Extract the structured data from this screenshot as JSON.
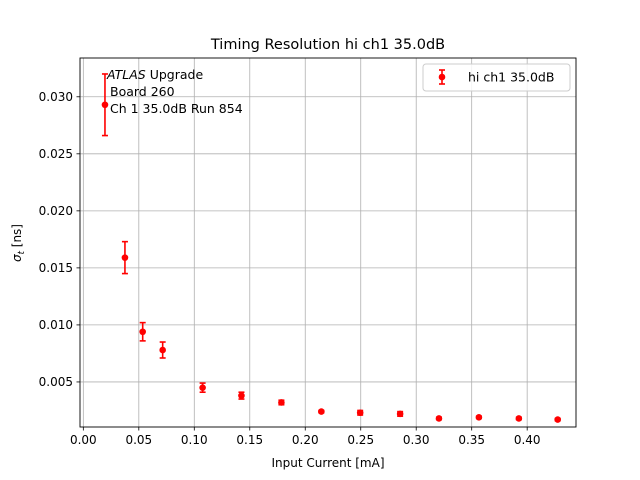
{
  "chart_data": {
    "type": "scatter",
    "title": "Timing Resolution hi ch1 35.0dB",
    "xlabel": "Input Current [mA]",
    "ylabel_sigma": "σ",
    "ylabel_sub": "t",
    "ylabel_unit": " [ns]",
    "xlim": [
      -0.003,
      0.444
    ],
    "ylim": [
      0.00105,
      0.0334
    ],
    "x_ticks": [
      "0.00",
      "0.05",
      "0.10",
      "0.15",
      "0.20",
      "0.25",
      "0.30",
      "0.35",
      "0.40"
    ],
    "x_tick_values": [
      0.0,
      0.05,
      0.1,
      0.15,
      0.2,
      0.25,
      0.3,
      0.35,
      0.4
    ],
    "y_ticks": [
      "0.005",
      "0.010",
      "0.015",
      "0.020",
      "0.025",
      "0.030"
    ],
    "y_tick_values": [
      0.005,
      0.01,
      0.015,
      0.02,
      0.025,
      0.03
    ],
    "grid": true,
    "legend_position": "top-right",
    "series": [
      {
        "name": "hi ch1 35.0dB",
        "color": "#ff0000",
        "x": [
          0.0195,
          0.0375,
          0.0535,
          0.0715,
          0.1075,
          0.1425,
          0.1785,
          0.2145,
          0.2495,
          0.2855,
          0.3205,
          0.3565,
          0.3925,
          0.4275
        ],
        "y": [
          0.0293,
          0.0159,
          0.0094,
          0.0078,
          0.0045,
          0.0038,
          0.0032,
          0.0024,
          0.0023,
          0.0022,
          0.0018,
          0.0019,
          0.0018,
          0.0017
        ],
        "yerr": [
          0.0027,
          0.0014,
          0.0008,
          0.0007,
          0.0004,
          0.0003,
          0.0002,
          0.0001,
          0.0002,
          0.0002,
          0.0001,
          0.0001,
          0.0001,
          0.0001
        ]
      }
    ],
    "annotation": {
      "line1_italic": "ATLAS",
      "line1_rest": " Upgrade",
      "line2": "Board 260",
      "line3": "Ch 1 35.0dB  Run 854"
    }
  }
}
